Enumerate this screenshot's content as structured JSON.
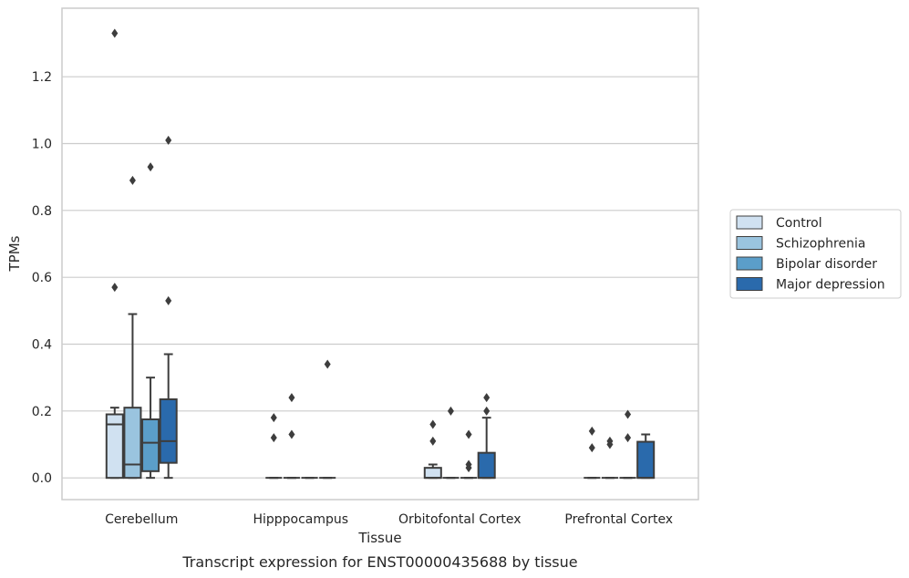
{
  "chart_data": {
    "type": "box",
    "title": "",
    "caption": "Transcript expression for ENST00000435688 by tissue",
    "xlabel": "Tissue",
    "ylabel": "TPMs",
    "ylim": [
      -0.065,
      1.405
    ],
    "yticks": [
      0.0,
      0.2,
      0.4,
      0.6,
      0.8,
      1.0,
      1.2
    ],
    "ytick_labels": [
      "0.0",
      "0.2",
      "0.4",
      "0.6",
      "0.8",
      "1.0",
      "1.2"
    ],
    "grid": "horizontal",
    "legend_position": "right",
    "categories": [
      "Cerebellum",
      "Hipppocampus",
      "Orbitofontal Cortex",
      "Prefrontal Cortex"
    ],
    "series": [
      {
        "name": "Control",
        "color": "#d0e1f1",
        "boxes": [
          {
            "q1": 0.0,
            "median": 0.16,
            "q3": 0.19,
            "whisker_low": 0.0,
            "whisker_high": 0.21,
            "outliers": [
              1.33,
              0.57
            ]
          },
          {
            "q1": 0.0,
            "median": 0.0,
            "q3": 0.0,
            "whisker_low": 0.0,
            "whisker_high": 0.0,
            "outliers": [
              0.18,
              0.12
            ]
          },
          {
            "q1": 0.0,
            "median": 0.0,
            "q3": 0.03,
            "whisker_low": 0.0,
            "whisker_high": 0.04,
            "outliers": [
              0.16,
              0.11
            ]
          },
          {
            "q1": 0.0,
            "median": 0.0,
            "q3": 0.0,
            "whisker_low": 0.0,
            "whisker_high": 0.0,
            "outliers": [
              0.14,
              0.09
            ]
          }
        ]
      },
      {
        "name": "Schizophrenia",
        "color": "#9ac4df",
        "boxes": [
          {
            "q1": 0.0,
            "median": 0.04,
            "q3": 0.21,
            "whisker_low": 0.0,
            "whisker_high": 0.49,
            "outliers": [
              0.89
            ]
          },
          {
            "q1": 0.0,
            "median": 0.0,
            "q3": 0.0,
            "whisker_low": 0.0,
            "whisker_high": 0.0,
            "outliers": [
              0.24,
              0.13
            ]
          },
          {
            "q1": 0.0,
            "median": 0.0,
            "q3": 0.0,
            "whisker_low": 0.0,
            "whisker_high": 0.0,
            "outliers": [
              0.2
            ]
          },
          {
            "q1": 0.0,
            "median": 0.0,
            "q3": 0.0,
            "whisker_low": 0.0,
            "whisker_high": 0.0,
            "outliers": [
              0.11,
              0.1
            ]
          }
        ]
      },
      {
        "name": "Bipolar disorder",
        "color": "#5b9ec9",
        "boxes": [
          {
            "q1": 0.02,
            "median": 0.105,
            "q3": 0.175,
            "whisker_low": 0.0,
            "whisker_high": 0.3,
            "outliers": [
              0.93
            ]
          },
          {
            "q1": 0.0,
            "median": 0.0,
            "q3": 0.0,
            "whisker_low": 0.0,
            "whisker_high": 0.0,
            "outliers": []
          },
          {
            "q1": 0.0,
            "median": 0.0,
            "q3": 0.0,
            "whisker_low": 0.0,
            "whisker_high": 0.0,
            "outliers": [
              0.13,
              0.04,
              0.03
            ]
          },
          {
            "q1": 0.0,
            "median": 0.0,
            "q3": 0.0,
            "whisker_low": 0.0,
            "whisker_high": 0.0,
            "outliers": [
              0.19,
              0.12
            ]
          }
        ]
      },
      {
        "name": "Major depression",
        "color": "#2a6aac",
        "boxes": [
          {
            "q1": 0.045,
            "median": 0.11,
            "q3": 0.235,
            "whisker_low": 0.0,
            "whisker_high": 0.37,
            "outliers": [
              1.01,
              0.53
            ]
          },
          {
            "q1": 0.0,
            "median": 0.0,
            "q3": 0.0,
            "whisker_low": 0.0,
            "whisker_high": 0.0,
            "outliers": [
              0.34
            ]
          },
          {
            "q1": 0.0,
            "median": 0.0,
            "q3": 0.075,
            "whisker_low": 0.0,
            "whisker_high": 0.18,
            "outliers": [
              0.24,
              0.2
            ]
          },
          {
            "q1": 0.0,
            "median": 0.0,
            "q3": 0.108,
            "whisker_low": 0.0,
            "whisker_high": 0.13,
            "outliers": []
          }
        ]
      }
    ]
  }
}
